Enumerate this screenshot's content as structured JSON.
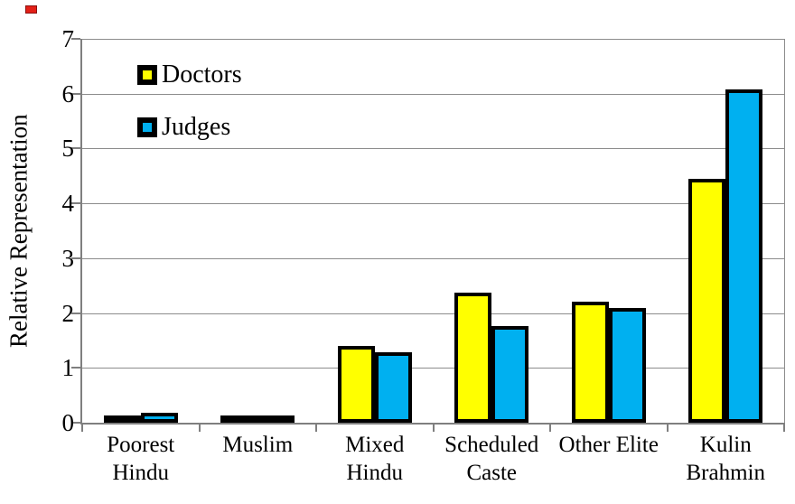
{
  "colors": {
    "doctors": "#ffff00",
    "judges": "#00b0f0",
    "bar_border": "#000000",
    "gridline": "#8c8c8c",
    "axis": "#7f7f7f",
    "text": "#000000",
    "red_mark": "#e32017",
    "background": "#ffffff"
  },
  "chart_data": {
    "type": "bar",
    "title": "",
    "xlabel": "",
    "ylabel": "Relative Representation",
    "ylim": [
      0,
      7
    ],
    "yticks": [
      0,
      1,
      2,
      3,
      4,
      5,
      6,
      7
    ],
    "grid": true,
    "legend_position": "top-left-inside",
    "categories": [
      "Poorest Hindu",
      "Muslim",
      "Mixed Hindu",
      "Scheduled Caste",
      "Other Elite",
      "Kulin Brahmin"
    ],
    "category_label_lines": [
      [
        "Poorest",
        "Hindu"
      ],
      [
        "Muslim"
      ],
      [
        "Mixed",
        "Hindu"
      ],
      [
        "Scheduled",
        "Caste"
      ],
      [
        "Other Elite"
      ],
      [
        "Kulin",
        "Brahmin"
      ]
    ],
    "series": [
      {
        "name": "Doctors",
        "color": "#ffff00",
        "values": [
          0.08,
          0.12,
          1.4,
          2.38,
          2.21,
          4.45
        ]
      },
      {
        "name": "Judges",
        "color": "#00b0f0",
        "values": [
          0.18,
          0.14,
          1.28,
          1.77,
          2.09,
          6.07
        ]
      }
    ]
  }
}
